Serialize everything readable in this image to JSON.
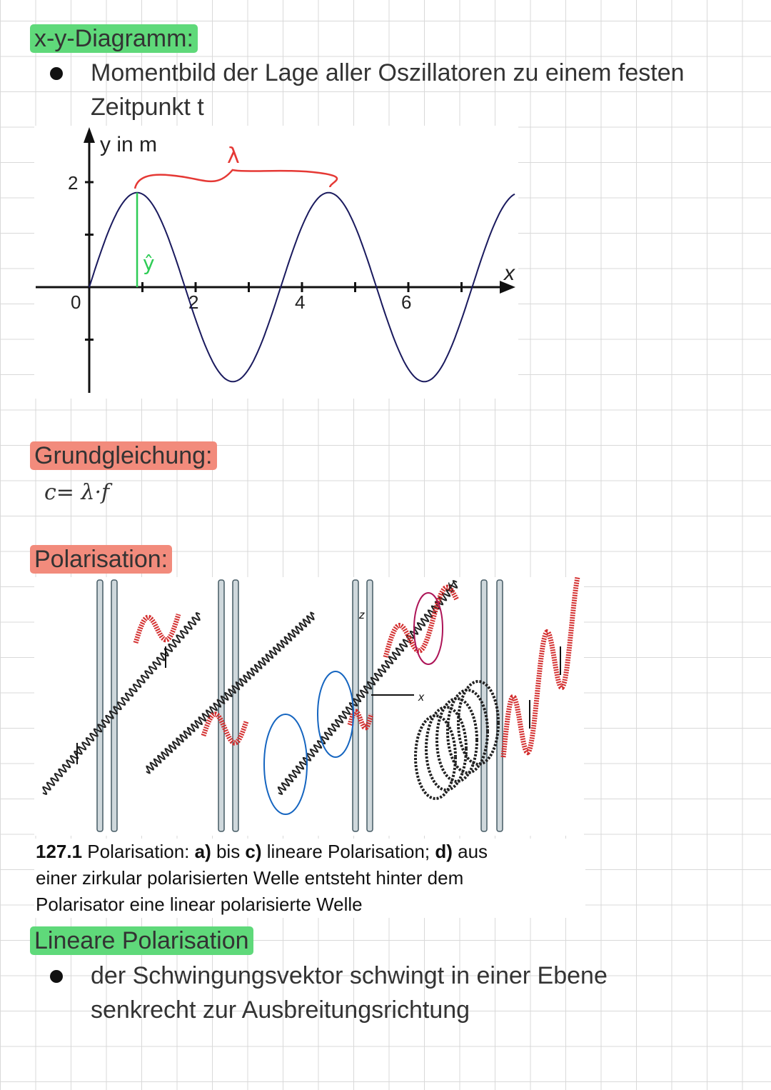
{
  "sections": {
    "xy": {
      "heading": "x-y-Diagramm:",
      "bullet_line1": "Momentbild der Lage aller Oszillatoren zu einem festen",
      "bullet_line2": "Zeitpunkt t"
    },
    "grund": {
      "heading": "Grundgleichung:",
      "formula": "c= λ·f"
    },
    "polar": {
      "heading": "Polarisation:",
      "caption": {
        "number": "127.1",
        "line1_a": " Polarisation: ",
        "a": "a)",
        "bis": " bis ",
        "c": "c)",
        "line1_b": " lineare Polarisation; ",
        "d": "d)",
        "line1_c": " aus",
        "line2": "einer zirkular polarisierten Welle entsteht hinter dem",
        "line3": "Polarisator eine linear polarisierte Welle"
      },
      "figure_labels": {
        "z": "z",
        "y": "y",
        "x": "x"
      }
    },
    "linear": {
      "heading": "Lineare Polarisation",
      "bullet_line1": "der Schwingungsvektor schwingt in einer Ebene",
      "bullet_line2": "senkrecht zur Ausbreitungsrichtung"
    }
  },
  "chart_data": {
    "type": "line",
    "ylabel": "y in m",
    "xlabel": "x",
    "x_tick_labels": [
      "0",
      "2",
      "4",
      "6"
    ],
    "y_tick_labels": [
      "2"
    ],
    "xlim": [
      -1,
      8
    ],
    "ylim": [
      -2,
      3
    ],
    "series": [
      {
        "function": "sine",
        "amplitude": 1.8,
        "wavelength": 3.6,
        "x_range": [
          0,
          8
        ]
      }
    ],
    "annotations": {
      "wavelength_label": "λ",
      "amplitude_label": "ŷ"
    },
    "colors": {
      "curve": "#1a1a5e",
      "wavelength_brace": "#e53935",
      "amplitude_line": "#2ecc55"
    },
    "grid": false
  },
  "colors": {
    "heading_green": "#5fd97a",
    "heading_salmon": "#f28b7c",
    "spring_red": "#d32f2f",
    "grid": "#d9d9d9"
  }
}
